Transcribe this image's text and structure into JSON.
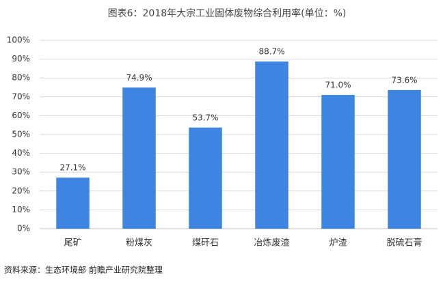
{
  "chart_data": {
    "type": "bar",
    "title": "图表6：2018年大宗工业固体废物综合利用率(单位：%)",
    "categories": [
      "尾矿",
      "粉煤灰",
      "煤矸石",
      "冶炼废渣",
      "炉渣",
      "脱硫石膏"
    ],
    "values": [
      27.1,
      74.9,
      53.7,
      88.7,
      71.0,
      73.6
    ],
    "value_labels": [
      "27.1%",
      "74.9%",
      "53.7%",
      "88.7%",
      "71.0%",
      "73.6%"
    ],
    "color": "#3d85e0",
    "ylim": [
      0,
      100
    ],
    "yticks": [
      {
        "value": 0,
        "label": "0%"
      },
      {
        "value": 10,
        "label": "10%"
      },
      {
        "value": 20,
        "label": "20%"
      },
      {
        "value": 30,
        "label": "30%"
      },
      {
        "value": 40,
        "label": "40%"
      },
      {
        "value": 50,
        "label": "50%"
      },
      {
        "value": 60,
        "label": "60%"
      },
      {
        "value": 70,
        "label": "70%"
      },
      {
        "value": 80,
        "label": "80%"
      },
      {
        "value": 90,
        "label": "90%"
      },
      {
        "value": 100,
        "label": "100%"
      }
    ],
    "grid": true,
    "source": "资料来源：生态环境部 前瞻产业研究院整理"
  }
}
